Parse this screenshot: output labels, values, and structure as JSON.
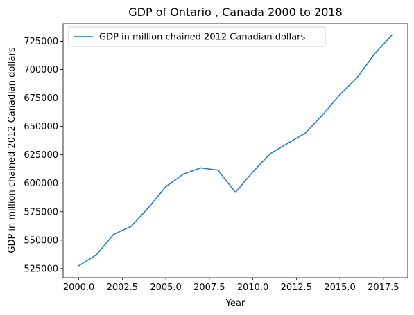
{
  "chart_data": {
    "type": "line",
    "title": "GDP of Ontario , Canada 2000 to 2018",
    "xlabel": "Year",
    "ylabel": "GDP in million chained 2012 Canadian dollars",
    "xlim": [
      1999.1,
      2018.9
    ],
    "ylim": [
      517000,
      740500
    ],
    "xticks": [
      2000,
      2002.5,
      2005,
      2007.5,
      2010,
      2012.5,
      2015,
      2017.5
    ],
    "xtick_labels": [
      "2000.0",
      "2002.5",
      "2005.0",
      "2007.5",
      "2010.0",
      "2012.5",
      "2015.0",
      "2017.5"
    ],
    "yticks": [
      525000,
      550000,
      575000,
      600000,
      625000,
      650000,
      675000,
      700000,
      725000
    ],
    "ytick_labels": [
      "525000",
      "550000",
      "575000",
      "600000",
      "625000",
      "650000",
      "675000",
      "700000",
      "725000"
    ],
    "grid": false,
    "legend_position": "top-left",
    "series": [
      {
        "name": "GDP in million chained 2012 Canadian dollars",
        "color": "#1f77b4",
        "x": [
          2000,
          2001,
          2002,
          2003,
          2004,
          2005,
          2006,
          2007,
          2008,
          2009,
          2010,
          2011,
          2012,
          2013,
          2014,
          2015,
          2016,
          2017,
          2018
        ],
        "y": [
          527500,
          537000,
          555000,
          562000,
          578500,
          597000,
          608000,
          613500,
          611500,
          592000,
          610000,
          626000,
          635000,
          644000,
          660000,
          678000,
          693000,
          714000,
          730500
        ]
      }
    ]
  }
}
